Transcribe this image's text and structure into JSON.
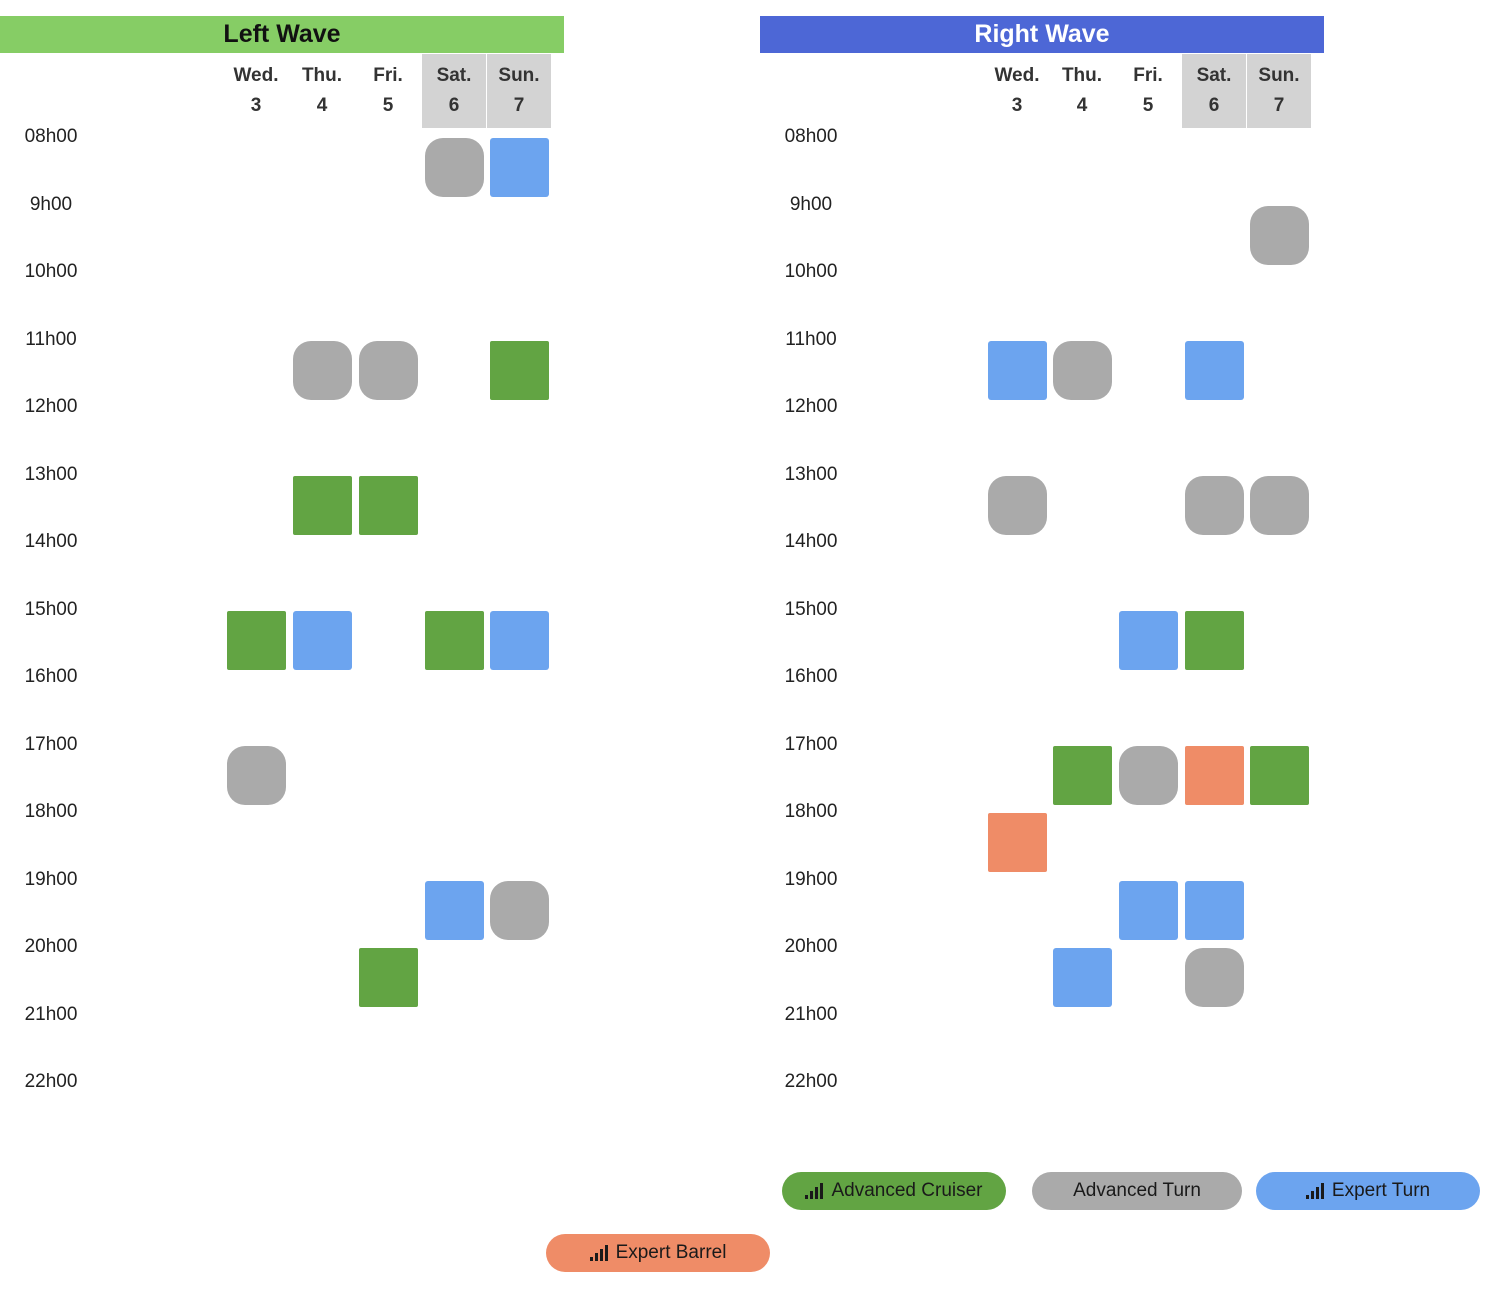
{
  "waves": [
    {
      "id": "left",
      "title": "Left Wave",
      "header_color": "#86cd65",
      "days": [
        {
          "name": "Wed.",
          "num": "3",
          "weekend": false
        },
        {
          "name": "Thu.",
          "num": "4",
          "weekend": false
        },
        {
          "name": "Fri.",
          "num": "5",
          "weekend": false
        },
        {
          "name": "Sat.",
          "num": "6",
          "weekend": true
        },
        {
          "name": "Sun.",
          "num": "7",
          "weekend": true
        }
      ],
      "times": [
        "08h00",
        "9h00",
        "10h00",
        "11h00",
        "12h00",
        "13h00",
        "14h00",
        "15h00",
        "16h00",
        "17h00",
        "18h00",
        "19h00",
        "20h00",
        "21h00",
        "22h00"
      ],
      "sessions": [
        {
          "day": 3,
          "start": "08h00",
          "type": "advanced-turn"
        },
        {
          "day": 4,
          "start": "08h00",
          "type": "expert-turn"
        },
        {
          "day": 1,
          "start": "11h00",
          "type": "advanced-turn"
        },
        {
          "day": 2,
          "start": "11h00",
          "type": "advanced-turn"
        },
        {
          "day": 4,
          "start": "11h00",
          "type": "advanced-cruiser"
        },
        {
          "day": 1,
          "start": "13h00",
          "type": "advanced-cruiser"
        },
        {
          "day": 2,
          "start": "13h00",
          "type": "advanced-cruiser"
        },
        {
          "day": 0,
          "start": "15h00",
          "type": "advanced-cruiser"
        },
        {
          "day": 1,
          "start": "15h00",
          "type": "expert-turn"
        },
        {
          "day": 3,
          "start": "15h00",
          "type": "advanced-cruiser"
        },
        {
          "day": 4,
          "start": "15h00",
          "type": "expert-turn"
        },
        {
          "day": 0,
          "start": "17h00",
          "type": "advanced-turn"
        },
        {
          "day": 3,
          "start": "19h00",
          "type": "expert-turn"
        },
        {
          "day": 4,
          "start": "19h00",
          "type": "advanced-turn"
        },
        {
          "day": 2,
          "start": "20h00",
          "type": "advanced-cruiser"
        }
      ]
    },
    {
      "id": "right",
      "title": "Right Wave",
      "header_color": "#4d67d6",
      "days": [
        {
          "name": "Wed.",
          "num": "3",
          "weekend": false
        },
        {
          "name": "Thu.",
          "num": "4",
          "weekend": false
        },
        {
          "name": "Fri.",
          "num": "5",
          "weekend": false
        },
        {
          "name": "Sat.",
          "num": "6",
          "weekend": true
        },
        {
          "name": "Sun.",
          "num": "7",
          "weekend": true
        }
      ],
      "times": [
        "08h00",
        "9h00",
        "10h00",
        "11h00",
        "12h00",
        "13h00",
        "14h00",
        "15h00",
        "16h00",
        "17h00",
        "18h00",
        "19h00",
        "20h00",
        "21h00",
        "22h00"
      ],
      "sessions": [
        {
          "day": 4,
          "start": "9h00",
          "type": "advanced-turn"
        },
        {
          "day": 0,
          "start": "11h00",
          "type": "expert-turn"
        },
        {
          "day": 1,
          "start": "11h00",
          "type": "advanced-turn"
        },
        {
          "day": 3,
          "start": "11h00",
          "type": "expert-turn"
        },
        {
          "day": 0,
          "start": "13h00",
          "type": "advanced-turn"
        },
        {
          "day": 3,
          "start": "13h00",
          "type": "advanced-turn"
        },
        {
          "day": 4,
          "start": "13h00",
          "type": "advanced-turn"
        },
        {
          "day": 2,
          "start": "15h00",
          "type": "expert-turn"
        },
        {
          "day": 3,
          "start": "15h00",
          "type": "advanced-cruiser"
        },
        {
          "day": 1,
          "start": "17h00",
          "type": "advanced-cruiser"
        },
        {
          "day": 2,
          "start": "17h00",
          "type": "advanced-turn"
        },
        {
          "day": 3,
          "start": "17h00",
          "type": "expert-barrel"
        },
        {
          "day": 4,
          "start": "17h00",
          "type": "advanced-cruiser"
        },
        {
          "day": 0,
          "start": "18h00",
          "type": "expert-barrel"
        },
        {
          "day": 2,
          "start": "19h00",
          "type": "expert-turn"
        },
        {
          "day": 3,
          "start": "19h00",
          "type": "expert-turn"
        },
        {
          "day": 1,
          "start": "20h00",
          "type": "expert-turn"
        },
        {
          "day": 3,
          "start": "20h00",
          "type": "advanced-turn"
        }
      ]
    }
  ],
  "session_types": {
    "advanced-cruiser": {
      "label": "Advanced Cruiser",
      "color": "#62a443",
      "icon": "signal-bars-icon"
    },
    "advanced-turn": {
      "label": "Advanced Turn",
      "color": "#aaaaaa",
      "icon": ""
    },
    "expert-turn": {
      "label": "Expert Turn",
      "color": "#6ca4ef",
      "icon": "signal-bars-icon"
    },
    "expert-barrel": {
      "label": "Expert Barrel",
      "color": "#ef8c67",
      "icon": "signal-bars-icon"
    }
  },
  "legend": [
    {
      "type": "advanced-cruiser",
      "label": "Advanced Cruiser",
      "has_icon": true
    },
    {
      "type": "advanced-turn",
      "label": "Advanced Turn",
      "has_icon": false
    },
    {
      "type": "expert-turn",
      "label": "Expert Turn",
      "has_icon": true
    },
    {
      "type": "expert-barrel",
      "label": "Expert Barrel",
      "has_icon": true
    }
  ]
}
